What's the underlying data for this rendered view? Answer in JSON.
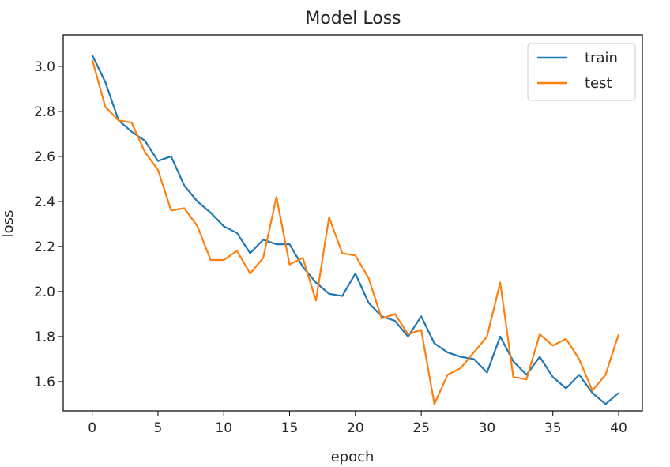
{
  "chart_data": {
    "type": "line",
    "title": "Model Loss",
    "xlabel": "epoch",
    "ylabel": "loss",
    "xlim": [
      -2.2,
      41.8
    ],
    "ylim": [
      1.47,
      3.14
    ],
    "xticks": [
      0,
      5,
      10,
      15,
      20,
      25,
      30,
      35,
      40
    ],
    "yticks": [
      1.6,
      1.8,
      2.0,
      2.2,
      2.4,
      2.6,
      2.8,
      3.0
    ],
    "xtick_labels": [
      "0",
      "5",
      "10",
      "15",
      "20",
      "25",
      "30",
      "35",
      "40"
    ],
    "ytick_labels": [
      "1.6",
      "1.8",
      "2.0",
      "2.2",
      "2.4",
      "2.6",
      "2.8",
      "3.0"
    ],
    "grid": false,
    "legend_position": "top-right",
    "x": [
      0,
      1,
      2,
      3,
      4,
      5,
      6,
      7,
      8,
      9,
      10,
      11,
      12,
      13,
      14,
      15,
      16,
      17,
      18,
      19,
      20,
      21,
      22,
      23,
      24,
      25,
      26,
      27,
      28,
      29,
      30,
      31,
      32,
      33,
      34,
      35,
      36,
      37,
      38,
      39,
      40
    ],
    "series": [
      {
        "name": "train",
        "color": "#1f77b4",
        "values": [
          3.05,
          2.93,
          2.76,
          2.71,
          2.67,
          2.58,
          2.6,
          2.47,
          2.4,
          2.35,
          2.29,
          2.26,
          2.17,
          2.23,
          2.21,
          2.21,
          2.11,
          2.04,
          1.99,
          1.98,
          2.08,
          1.95,
          1.89,
          1.87,
          1.8,
          1.89,
          1.77,
          1.73,
          1.71,
          1.7,
          1.64,
          1.8,
          1.69,
          1.63,
          1.71,
          1.62,
          1.57,
          1.63,
          1.55,
          1.5,
          1.55
        ]
      },
      {
        "name": "test",
        "color": "#ff7f0e",
        "values": [
          3.03,
          2.82,
          2.76,
          2.75,
          2.62,
          2.54,
          2.36,
          2.37,
          2.29,
          2.14,
          2.14,
          2.18,
          2.08,
          2.15,
          2.42,
          2.12,
          2.15,
          1.96,
          2.33,
          2.17,
          2.16,
          2.06,
          1.88,
          1.9,
          1.81,
          1.83,
          1.5,
          1.63,
          1.66,
          1.73,
          1.8,
          2.04,
          1.62,
          1.61,
          1.81,
          1.76,
          1.79,
          1.7,
          1.56,
          1.63,
          1.81
        ]
      }
    ]
  }
}
